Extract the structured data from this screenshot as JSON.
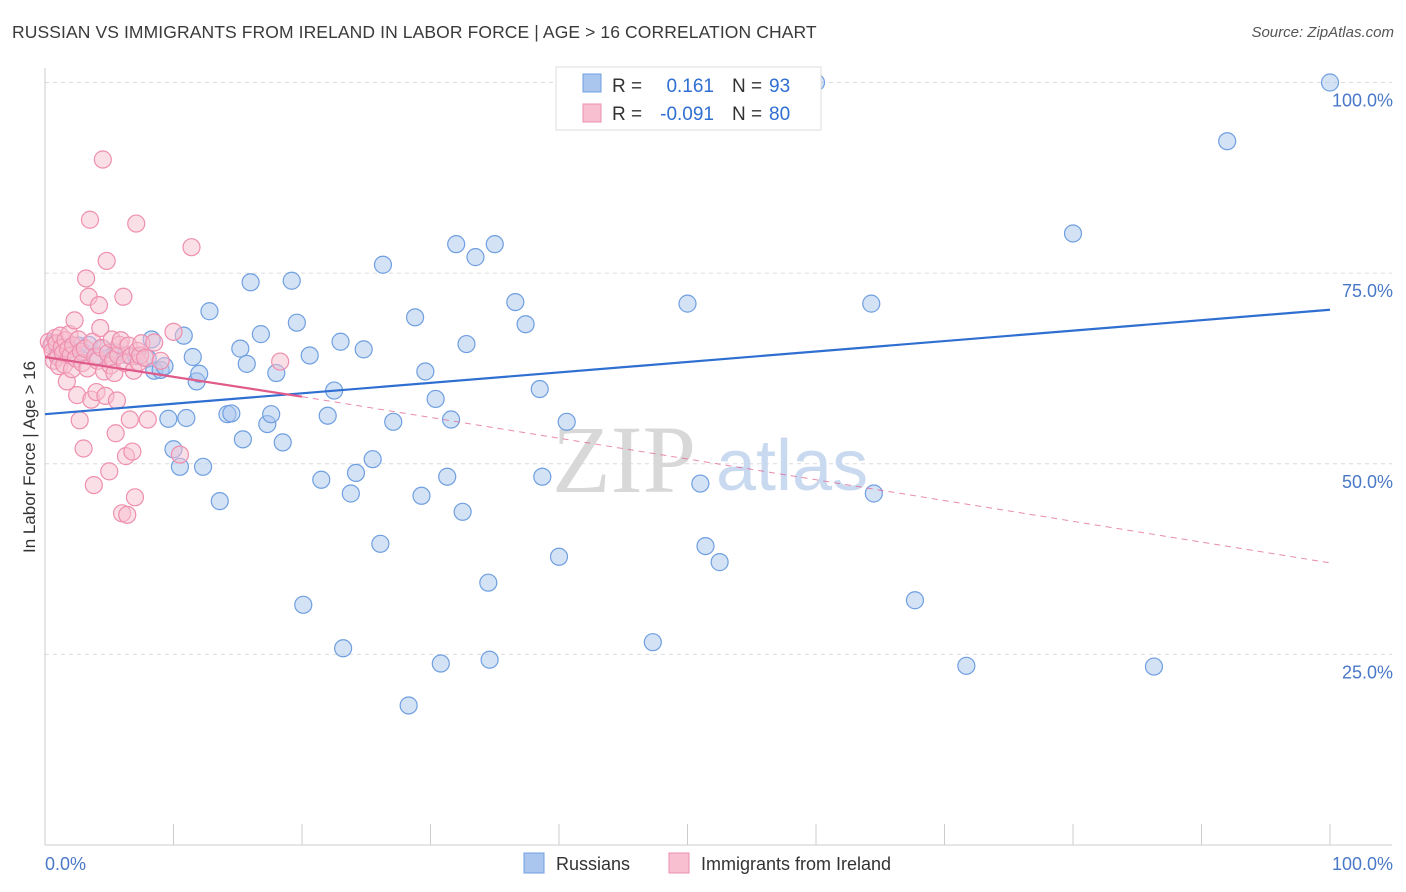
{
  "title": "RUSSIAN VS IMMIGRANTS FROM IRELAND IN LABOR FORCE | AGE > 16 CORRELATION CHART",
  "source": "Source: ZipAtlas.com",
  "watermark": {
    "zip": "ZIP",
    "atlas": "atlas"
  },
  "chart_data": {
    "type": "scatter",
    "ylabel": "In Labor Force | Age > 16",
    "xlim": [
      0,
      100
    ],
    "ylim": [
      0,
      104
    ],
    "x_ticks": [
      "0.0%",
      "100.0%"
    ],
    "y_ticks": [
      {
        "value": 25,
        "label": "25.0%"
      },
      {
        "value": 50,
        "label": "50.0%"
      },
      {
        "value": 75,
        "label": "75.0%"
      },
      {
        "value": 100,
        "label": "100.0%"
      }
    ],
    "grid": true,
    "legend_position": "top-center",
    "stats": [
      {
        "r_label": "R =",
        "r": "0.161",
        "n_label": "N =",
        "n": "93"
      },
      {
        "r_label": "R =",
        "r": "-0.091",
        "n_label": "N =",
        "n": "80"
      }
    ],
    "series": [
      {
        "name": "Russians",
        "color": "#6f9fe0",
        "fill": "#aac6ee",
        "trend": {
          "x": [
            0,
            100
          ],
          "y": [
            56.5,
            70.2
          ],
          "color": "#2f6fd1"
        },
        "points": [
          [
            0.6,
            65.8
          ],
          [
            1.0,
            64.3
          ],
          [
            1.4,
            64.8
          ],
          [
            1.8,
            65.3
          ],
          [
            2.2,
            64.1
          ],
          [
            2.6,
            65.5
          ],
          [
            3.0,
            64.6
          ],
          [
            3.4,
            65.6
          ],
          [
            4.0,
            64.2
          ],
          [
            4.5,
            65.1
          ],
          [
            5.0,
            63.9
          ],
          [
            5.5,
            64.6
          ],
          [
            6.3,
            64.3
          ],
          [
            7.1,
            64.1
          ],
          [
            8.0,
            63.8
          ],
          [
            8.3,
            66.3
          ],
          [
            8.5,
            62.2
          ],
          [
            9.0,
            62.3
          ],
          [
            9.3,
            62.8
          ],
          [
            9.6,
            55.9
          ],
          [
            10.0,
            51.9
          ],
          [
            10.5,
            49.6
          ],
          [
            10.8,
            66.8
          ],
          [
            11.0,
            56.0
          ],
          [
            11.5,
            64.0
          ],
          [
            11.8,
            60.8
          ],
          [
            12.0,
            61.8
          ],
          [
            12.3,
            49.6
          ],
          [
            12.8,
            70.0
          ],
          [
            13.6,
            45.1
          ],
          [
            14.2,
            56.5
          ],
          [
            14.5,
            56.6
          ],
          [
            15.2,
            65.1
          ],
          [
            15.4,
            53.2
          ],
          [
            15.7,
            63.1
          ],
          [
            16.0,
            73.8
          ],
          [
            16.8,
            67.0
          ],
          [
            17.3,
            55.2
          ],
          [
            17.6,
            56.5
          ],
          [
            18.0,
            61.9
          ],
          [
            18.5,
            52.8
          ],
          [
            19.2,
            74.0
          ],
          [
            19.6,
            68.5
          ],
          [
            20.1,
            31.5
          ],
          [
            20.6,
            64.2
          ],
          [
            21.5,
            47.9
          ],
          [
            22.0,
            56.3
          ],
          [
            22.5,
            59.6
          ],
          [
            23.0,
            66.0
          ],
          [
            23.2,
            25.8
          ],
          [
            23.8,
            46.1
          ],
          [
            24.2,
            48.8
          ],
          [
            24.8,
            65.0
          ],
          [
            25.5,
            50.6
          ],
          [
            26.1,
            39.5
          ],
          [
            26.3,
            76.1
          ],
          [
            27.1,
            55.5
          ],
          [
            28.3,
            18.3
          ],
          [
            28.8,
            69.2
          ],
          [
            29.3,
            45.8
          ],
          [
            29.6,
            62.1
          ],
          [
            30.4,
            58.5
          ],
          [
            30.8,
            23.8
          ],
          [
            31.3,
            48.3
          ],
          [
            31.6,
            55.8
          ],
          [
            32.0,
            78.8
          ],
          [
            32.5,
            43.7
          ],
          [
            32.8,
            65.7
          ],
          [
            33.5,
            77.1
          ],
          [
            34.5,
            34.4
          ],
          [
            34.6,
            24.3
          ],
          [
            35.0,
            78.8
          ],
          [
            36.6,
            71.2
          ],
          [
            37.4,
            68.3
          ],
          [
            38.5,
            59.8
          ],
          [
            38.7,
            48.3
          ],
          [
            40.0,
            37.8
          ],
          [
            40.6,
            55.5
          ],
          [
            47.3,
            26.6
          ],
          [
            50.0,
            71.0
          ],
          [
            51.0,
            47.4
          ],
          [
            51.4,
            39.2
          ],
          [
            52.5,
            37.1
          ],
          [
            59.0,
            100
          ],
          [
            60.0,
            100
          ],
          [
            64.3,
            71.0
          ],
          [
            64.5,
            46.1
          ],
          [
            67.7,
            32.1
          ],
          [
            71.7,
            23.5
          ],
          [
            80.0,
            80.2
          ],
          [
            86.3,
            23.4
          ],
          [
            92.0,
            92.3
          ],
          [
            100,
            100
          ]
        ]
      },
      {
        "name": "Immigrants from Ireland",
        "color": "#ee8fae",
        "fill": "#f7bfd0",
        "trend": {
          "x": [
            0,
            20
          ],
          "y": [
            64.0,
            58.8
          ],
          "color": "#e05a8a",
          "dashed_x": [
            20,
            100
          ],
          "dashed_y": [
            58.8,
            37.0
          ]
        },
        "points": [
          [
            0.3,
            66.0
          ],
          [
            0.5,
            65.5
          ],
          [
            0.6,
            64.8
          ],
          [
            0.7,
            63.5
          ],
          [
            0.8,
            66.5
          ],
          [
            0.9,
            65.8
          ],
          [
            1.0,
            64.0
          ],
          [
            1.1,
            62.8
          ],
          [
            1.2,
            66.8
          ],
          [
            1.3,
            65.2
          ],
          [
            1.4,
            64.5
          ],
          [
            1.5,
            63.0
          ],
          [
            1.6,
            66.2
          ],
          [
            1.7,
            60.8
          ],
          [
            1.8,
            65.0
          ],
          [
            1.9,
            67.0
          ],
          [
            2.0,
            64.2
          ],
          [
            2.1,
            62.4
          ],
          [
            2.2,
            65.5
          ],
          [
            2.3,
            68.8
          ],
          [
            2.4,
            63.8
          ],
          [
            2.5,
            59.0
          ],
          [
            2.6,
            66.3
          ],
          [
            2.7,
            55.7
          ],
          [
            2.8,
            64.7
          ],
          [
            2.9,
            63.2
          ],
          [
            3.0,
            52.0
          ],
          [
            3.1,
            65.1
          ],
          [
            3.2,
            74.3
          ],
          [
            3.3,
            62.5
          ],
          [
            3.4,
            71.9
          ],
          [
            3.5,
            82.0
          ],
          [
            3.6,
            58.4
          ],
          [
            3.7,
            66.0
          ],
          [
            3.8,
            47.2
          ],
          [
            3.9,
            64.0
          ],
          [
            4.0,
            59.4
          ],
          [
            4.1,
            63.5
          ],
          [
            4.2,
            70.8
          ],
          [
            4.3,
            67.8
          ],
          [
            4.4,
            65.2
          ],
          [
            4.5,
            89.9
          ],
          [
            4.6,
            62.1
          ],
          [
            4.7,
            58.9
          ],
          [
            4.8,
            76.6
          ],
          [
            4.9,
            64.5
          ],
          [
            5.0,
            49.0
          ],
          [
            5.1,
            62.9
          ],
          [
            5.2,
            66.3
          ],
          [
            5.3,
            63.6
          ],
          [
            5.4,
            61.9
          ],
          [
            5.5,
            54.0
          ],
          [
            5.6,
            58.3
          ],
          [
            5.7,
            64.2
          ],
          [
            5.8,
            65.6
          ],
          [
            5.9,
            66.2
          ],
          [
            6.0,
            43.5
          ],
          [
            6.1,
            71.9
          ],
          [
            6.2,
            63.2
          ],
          [
            6.3,
            51.0
          ],
          [
            6.4,
            43.3
          ],
          [
            6.5,
            65.5
          ],
          [
            6.6,
            55.8
          ],
          [
            6.7,
            64.1
          ],
          [
            6.8,
            51.6
          ],
          [
            6.9,
            62.2
          ],
          [
            7.0,
            45.6
          ],
          [
            7.1,
            81.5
          ],
          [
            7.2,
            64.8
          ],
          [
            7.3,
            63.3
          ],
          [
            7.4,
            64.2
          ],
          [
            7.5,
            65.8
          ],
          [
            7.8,
            63.9
          ],
          [
            8.0,
            55.8
          ],
          [
            8.5,
            65.9
          ],
          [
            9.0,
            63.5
          ],
          [
            10.0,
            67.3
          ],
          [
            10.5,
            51.2
          ],
          [
            11.4,
            78.4
          ],
          [
            18.3,
            63.4
          ]
        ]
      }
    ]
  }
}
